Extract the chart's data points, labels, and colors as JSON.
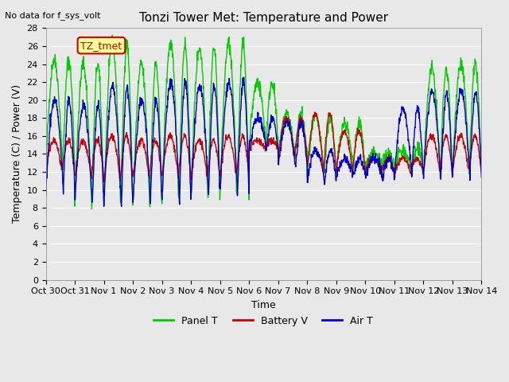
{
  "title": "Tonzi Tower Met: Temperature and Power",
  "subtitle": "No data for f_sys_volt",
  "ylabel": "Temperature (C) / Power (V)",
  "xlabel": "Time",
  "ylim": [
    0,
    28
  ],
  "yticks": [
    0,
    2,
    4,
    6,
    8,
    10,
    12,
    14,
    16,
    18,
    20,
    22,
    24,
    26,
    28
  ],
  "x_tick_labels": [
    "Oct 30",
    "Oct 31",
    "Nov 1",
    "Nov 2",
    "Nov 3",
    "Nov 4",
    "Nov 5",
    "Nov 6",
    "Nov 7",
    "Nov 8",
    "Nov 9",
    "Nov 10",
    "Nov 11",
    "Nov 12",
    "Nov 13",
    "Nov 14"
  ],
  "legend_labels": [
    "Panel T",
    "Battery V",
    "Air T"
  ],
  "legend_colors": [
    "#00cc00",
    "#cc0000",
    "#0000cc"
  ],
  "bg_color": "#e8e8e8",
  "plot_bg_color": "#e8e8e8",
  "annotation_text": "TZ_tmet",
  "annotation_color": "#cc0000",
  "annotation_bg": "#ffff99",
  "n_days": 15,
  "panel_t_peaks": [
    24.5,
    24.0,
    26.3,
    24.0,
    26.2,
    25.8,
    26.3,
    22.0,
    18.5,
    18.0,
    17.5,
    14.0,
    14.5,
    23.5,
    24.0
  ],
  "panel_t_troughs": [
    12.5,
    8.0,
    8.0,
    8.0,
    8.5,
    9.0,
    9.0,
    15.0,
    13.5,
    11.5,
    12.0,
    12.5,
    12.0,
    11.5,
    12.0
  ],
  "battery_v_peaks": [
    15.5,
    15.5,
    16.0,
    15.5,
    16.0,
    15.5,
    16.0,
    15.5,
    18.0,
    18.5,
    16.5,
    13.5,
    13.5,
    16.0,
    16.0
  ],
  "battery_v_troughs": [
    12.0,
    11.5,
    11.0,
    11.5,
    11.5,
    11.5,
    11.5,
    14.5,
    13.5,
    12.0,
    12.0,
    12.0,
    12.0,
    12.0,
    12.0
  ],
  "air_t_peaks": [
    20.0,
    19.5,
    21.5,
    20.0,
    22.0,
    21.5,
    22.0,
    18.0,
    17.5,
    14.5,
    13.5,
    13.5,
    19.0,
    21.0,
    21.0
  ],
  "air_t_troughs": [
    10.0,
    8.5,
    8.0,
    8.5,
    8.5,
    9.5,
    9.5,
    14.5,
    12.5,
    11.0,
    11.5,
    11.5,
    11.5,
    11.0,
    11.5
  ]
}
